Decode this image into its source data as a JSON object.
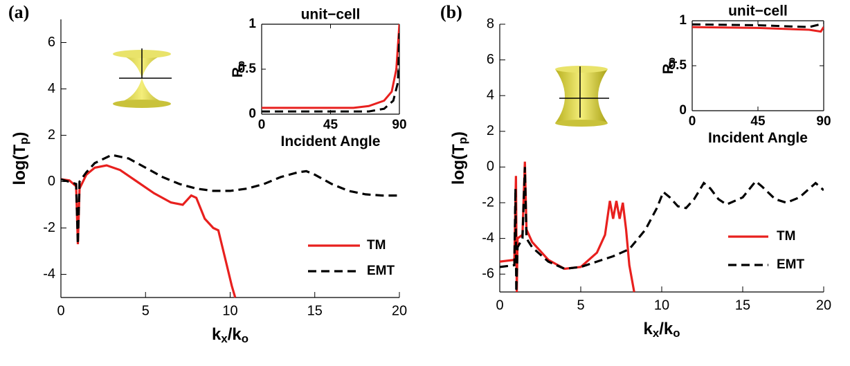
{
  "chart_data": [
    {
      "type": "line",
      "label": "(a)",
      "xlabel": [
        "k",
        "x",
        "/k",
        "o"
      ],
      "ylabel": [
        "log(T",
        "p",
        ")"
      ],
      "xlim": [
        0,
        20
      ],
      "ylim": [
        -5,
        7
      ],
      "xticks": [
        0,
        5,
        10,
        15,
        20
      ],
      "yticks": [
        -4,
        -2,
        0,
        2,
        4,
        6
      ],
      "legend": "lower right",
      "series": [
        {
          "name": "TM",
          "color": "#e8201e",
          "style": "solid",
          "x": [
            0,
            0.5,
            0.9,
            1.0,
            1.1,
            1.5,
            2,
            2.7,
            3.5,
            4.5,
            5.5,
            6.5,
            7.2,
            7.7,
            8.0,
            8.5,
            9.0,
            9.3,
            9.7,
            10.1,
            10.3
          ],
          "values": [
            0.1,
            0.05,
            -0.2,
            -2.7,
            -0.3,
            0.3,
            0.6,
            0.7,
            0.5,
            0,
            -0.5,
            -0.9,
            -1.0,
            -0.6,
            -0.7,
            -1.6,
            -2.0,
            -2.1,
            -3.3,
            -4.5,
            -5
          ]
        },
        {
          "name": "EMT",
          "color": "#000000",
          "style": "dashed",
          "x": [
            0,
            0.9,
            1.0,
            1.1,
            1.5,
            2,
            3,
            4,
            5,
            6,
            7,
            8,
            9,
            10,
            11,
            12,
            13,
            14,
            14.5,
            15,
            16,
            17,
            18,
            19,
            20
          ],
          "values": [
            0.1,
            -0.1,
            -2.7,
            0,
            0.4,
            0.8,
            1.15,
            1.0,
            0.6,
            0.2,
            -0.1,
            -0.3,
            -0.4,
            -0.4,
            -0.3,
            -0.1,
            0.2,
            0.4,
            0.45,
            0.3,
            -0.1,
            -0.4,
            -0.55,
            -0.6,
            -0.6
          ]
        }
      ]
    },
    {
      "type": "line",
      "title": "unit−cell",
      "xlabel": [
        "Incident Angle"
      ],
      "ylabel": [
        "R",
        "p"
      ],
      "xlim": [
        0,
        90
      ],
      "ylim": [
        0,
        1
      ],
      "xticks": [
        0,
        45,
        90
      ],
      "yticks": [
        0,
        0.5,
        1
      ],
      "series": [
        {
          "color": "#e8201e",
          "style": "solid",
          "x": [
            0,
            30,
            60,
            70,
            80,
            85,
            88,
            90
          ],
          "values": [
            0.07,
            0.07,
            0.07,
            0.09,
            0.15,
            0.25,
            0.5,
            1
          ]
        },
        {
          "color": "#000000",
          "style": "dashed",
          "x": [
            0,
            30,
            70,
            80,
            86,
            89,
            90
          ],
          "values": [
            0.03,
            0.03,
            0.03,
            0.06,
            0.15,
            0.35,
            0.9
          ]
        }
      ]
    },
    {
      "type": "line",
      "label": "(b)",
      "xlabel": [
        "k",
        "x",
        "/k",
        "o"
      ],
      "ylabel": [
        "log(T",
        "p",
        ")"
      ],
      "xlim": [
        0,
        20
      ],
      "ylim": [
        -7,
        8
      ],
      "xticks": [
        0,
        5,
        10,
        15,
        20
      ],
      "yticks": [
        -6,
        -4,
        -2,
        0,
        2,
        4,
        6,
        8
      ],
      "legend": "lower right",
      "series": [
        {
          "name": "TM",
          "color": "#e8201e",
          "style": "solid",
          "x": [
            0,
            0.9,
            1.0,
            1.05,
            1.1,
            1.4,
            1.55,
            1.65,
            2,
            3,
            4,
            5,
            6,
            6.5,
            6.8,
            7.0,
            7.2,
            7.4,
            7.6,
            7.8,
            8.0,
            8.3
          ],
          "values": [
            -5.3,
            -5.2,
            -0.5,
            -7,
            -4,
            -3.8,
            0.3,
            -3.5,
            -4.2,
            -5.2,
            -5.7,
            -5.6,
            -4.8,
            -3.8,
            -1.9,
            -2.9,
            -1.9,
            -2.9,
            -2.0,
            -3.5,
            -5.5,
            -7
          ]
        },
        {
          "name": "EMT",
          "color": "#000000",
          "style": "dashed",
          "x": [
            0,
            0.9,
            0.97,
            1.02,
            1.1,
            1.4,
            1.55,
            1.65,
            2,
            3,
            4,
            5,
            6,
            7,
            8,
            9,
            9.7,
            10.1,
            10.5,
            11,
            11.5,
            12,
            12.6,
            13,
            13.5,
            14,
            15,
            15.8,
            16.2,
            17,
            17.7,
            18.5,
            19.5,
            20
          ],
          "values": [
            -5.6,
            -5.5,
            -1.2,
            -7,
            -4.5,
            -4,
            0,
            -4,
            -4.5,
            -5.3,
            -5.7,
            -5.6,
            -5.3,
            -5.0,
            -4.6,
            -3.5,
            -2.3,
            -1.4,
            -1.7,
            -2.2,
            -2.3,
            -1.8,
            -0.9,
            -1.2,
            -1.8,
            -2.1,
            -1.7,
            -0.8,
            -1.1,
            -1.8,
            -2.0,
            -1.7,
            -0.9,
            -1.3
          ]
        }
      ]
    },
    {
      "type": "line",
      "title": "unit−cell",
      "xlabel": [
        "Incident Angle"
      ],
      "ylabel": [
        "R",
        "p"
      ],
      "xlim": [
        0,
        90
      ],
      "ylim": [
        0,
        1
      ],
      "xticks": [
        0,
        45,
        90
      ],
      "yticks": [
        0,
        0.5,
        1
      ],
      "series": [
        {
          "color": "#e8201e",
          "style": "solid",
          "x": [
            0,
            45,
            80,
            88,
            90
          ],
          "values": [
            0.93,
            0.92,
            0.9,
            0.88,
            0.93
          ]
        },
        {
          "color": "#000000",
          "style": "dashed",
          "x": [
            0,
            45,
            80,
            90
          ],
          "values": [
            0.96,
            0.95,
            0.93,
            0.97
          ]
        }
      ]
    }
  ]
}
